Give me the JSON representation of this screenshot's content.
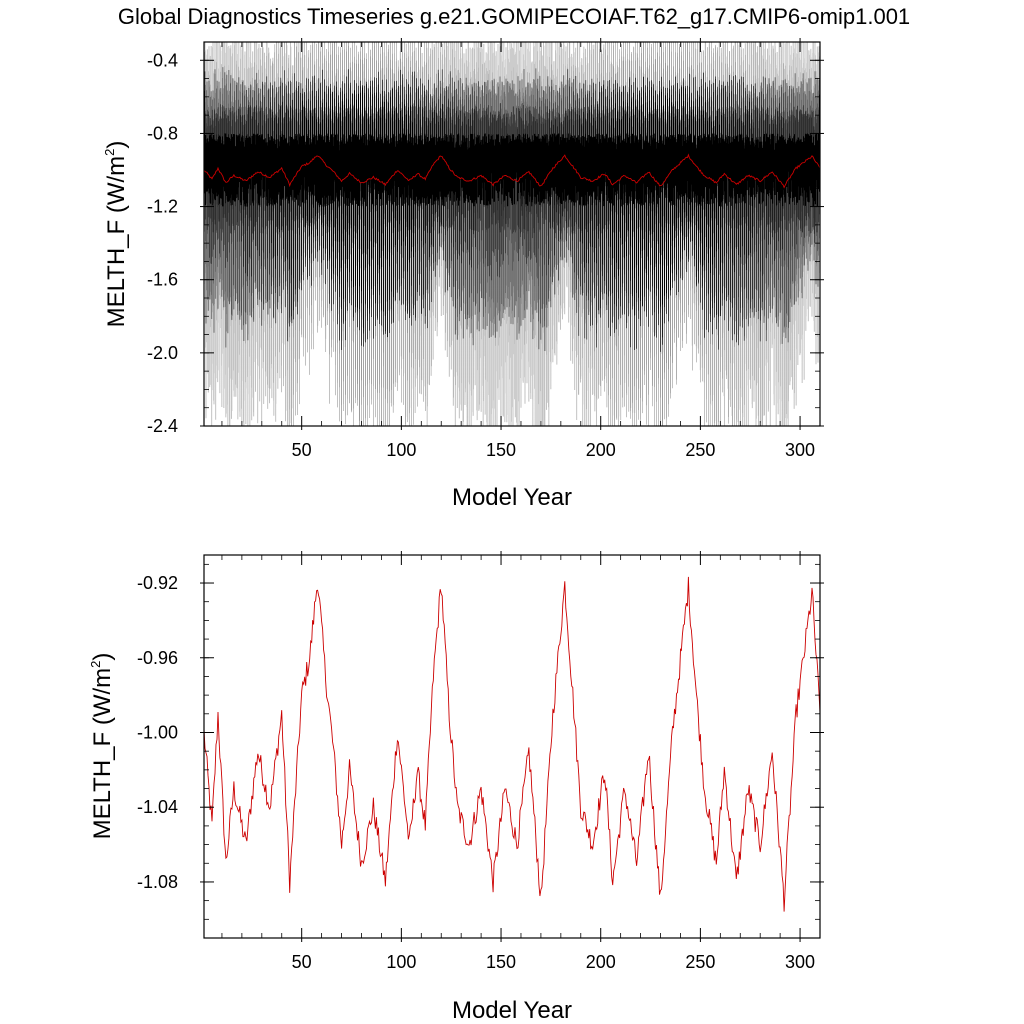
{
  "figure_title": "Global Diagnostics Timeseries g.e21.GOMIPECOIAF.T62_g17.CMIP6-omip1.001",
  "colors": {
    "monthly": "#000000",
    "annual": "#cc0000",
    "axis": "#000000"
  },
  "chart_data": [
    {
      "type": "line",
      "title": "Global Diagnostics Timeseries g.e21.GOMIPECOIAF.T62_g17.CMIP6-omip1.001",
      "xlabel": "Model Year",
      "ylabel_main": "MELTH_F (W/m",
      "ylabel_sup": "2",
      "ylabel_close": ")",
      "xlim": [
        1,
        310
      ],
      "ylim": [
        -2.4,
        -0.3
      ],
      "xticks": [
        50,
        100,
        150,
        200,
        250,
        300
      ],
      "xtick_labels": [
        "50",
        "100",
        "150",
        "200",
        "250",
        "300"
      ],
      "yticks": [
        -2.4,
        -2.0,
        -1.6,
        -1.2,
        -0.8,
        -0.4
      ],
      "ytick_labels": [
        "-2.4",
        "-2.0",
        "-1.6",
        "-1.2",
        "-0.8",
        "-0.4"
      ],
      "series": [
        {
          "name": "monthly",
          "description": "monthly global mean, seasonal cycle between roughly -2.2 and -0.45 W/m2",
          "approx_range": [
            -2.2,
            -0.45
          ]
        },
        {
          "name": "annual mean",
          "description": "annual mean, between about -1.09 and -0.92 W/m2"
        }
      ]
    },
    {
      "type": "line",
      "xlabel": "Model Year",
      "ylabel_main": "MELTH_F (W/m",
      "ylabel_sup": "2",
      "ylabel_close": ")",
      "xlim": [
        1,
        310
      ],
      "ylim": [
        -1.11,
        -0.905
      ],
      "xticks": [
        50,
        100,
        150,
        200,
        250,
        300
      ],
      "xtick_labels": [
        "50",
        "100",
        "150",
        "200",
        "250",
        "300"
      ],
      "yticks": [
        -1.08,
        -1.04,
        -1.0,
        -0.96,
        -0.92
      ],
      "ytick_labels": [
        "-1.08",
        "-1.04",
        "-1.00",
        "-0.96",
        "-0.92"
      ],
      "series": [
        {
          "name": "annual mean",
          "description": "annual mean repeating forcing cycle of ~62 years with peaks near -0.92 at years 58, 120, 182, 244, 306",
          "key_points": [
            [
              1,
              -1.0
            ],
            [
              5,
              -1.05
            ],
            [
              8,
              -0.99
            ],
            [
              12,
              -1.07
            ],
            [
              16,
              -1.03
            ],
            [
              22,
              -1.06
            ],
            [
              28,
              -1.01
            ],
            [
              34,
              -1.04
            ],
            [
              40,
              -0.99
            ],
            [
              44,
              -1.08
            ],
            [
              50,
              -0.98
            ],
            [
              54,
              -0.96
            ],
            [
              58,
              -0.918
            ],
            [
              62,
              -0.97
            ],
            [
              66,
              -1.01
            ],
            [
              70,
              -1.06
            ],
            [
              74,
              -1.02
            ],
            [
              80,
              -1.07
            ],
            [
              86,
              -1.04
            ],
            [
              92,
              -1.08
            ],
            [
              98,
              -1.0
            ],
            [
              104,
              -1.06
            ],
            [
              108,
              -1.02
            ],
            [
              112,
              -1.05
            ],
            [
              116,
              -0.97
            ],
            [
              120,
              -0.92
            ],
            [
              124,
              -0.99
            ],
            [
              128,
              -1.04
            ],
            [
              134,
              -1.06
            ],
            [
              140,
              -1.03
            ],
            [
              146,
              -1.08
            ],
            [
              152,
              -1.03
            ],
            [
              158,
              -1.06
            ],
            [
              164,
              -1.01
            ],
            [
              170,
              -1.09
            ],
            [
              176,
              -0.99
            ],
            [
              182,
              -0.921
            ],
            [
              186,
              -0.98
            ],
            [
              190,
              -1.04
            ],
            [
              196,
              -1.06
            ],
            [
              202,
              -1.02
            ],
            [
              206,
              -1.08
            ],
            [
              212,
              -1.03
            ],
            [
              218,
              -1.07
            ],
            [
              224,
              -1.01
            ],
            [
              230,
              -1.09
            ],
            [
              236,
              -1.0
            ],
            [
              244,
              -0.922
            ],
            [
              248,
              -0.98
            ],
            [
              252,
              -1.03
            ],
            [
              258,
              -1.07
            ],
            [
              262,
              -1.02
            ],
            [
              268,
              -1.08
            ],
            [
              274,
              -1.03
            ],
            [
              280,
              -1.06
            ],
            [
              286,
              -1.01
            ],
            [
              292,
              -1.09
            ],
            [
              298,
              -0.99
            ],
            [
              303,
              -0.95
            ],
            [
              306,
              -0.925
            ],
            [
              310,
              -0.99
            ]
          ]
        }
      ]
    }
  ]
}
